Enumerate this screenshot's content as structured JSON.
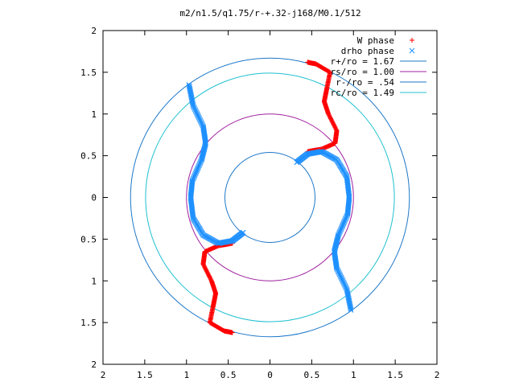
{
  "chart_data": {
    "type": "scatter",
    "title": "m2/n1.5/q1.75/r-+.32-j168/M0.1/512",
    "xlim": [
      -2,
      2
    ],
    "ylim": [
      -2,
      2
    ],
    "x_ticks": [
      -2,
      -1.5,
      -1,
      -0.5,
      0,
      0.5,
      1,
      1.5,
      2
    ],
    "y_ticks": [
      -2,
      -1.5,
      -1,
      -0.5,
      0,
      0.5,
      1,
      1.5,
      2
    ],
    "x_tick_labels": [
      "2",
      "1.5",
      "1",
      "0.5",
      "0",
      "0.5",
      "1",
      "1.5",
      "2"
    ],
    "y_tick_labels": [
      "2",
      "1.5",
      "1",
      "0.5",
      "0",
      "0.5",
      "1",
      "1.5",
      "2"
    ],
    "grid": false,
    "legend_position": "top-right",
    "series": [
      {
        "name": "W phase",
        "marker": "plus",
        "color": "#ff0000",
        "arms": [
          [
            [
              0.45,
              0.55
            ],
            [
              0.62,
              0.58
            ],
            [
              0.78,
              0.65
            ],
            [
              0.8,
              0.8
            ],
            [
              0.7,
              1.0
            ],
            [
              0.65,
              1.15
            ],
            [
              0.68,
              1.3
            ],
            [
              0.72,
              1.5
            ],
            [
              0.55,
              1.6
            ],
            [
              0.45,
              1.62
            ]
          ],
          [
            [
              -0.45,
              -0.55
            ],
            [
              -0.62,
              -0.58
            ],
            [
              -0.78,
              -0.65
            ],
            [
              -0.8,
              -0.8
            ],
            [
              -0.7,
              -1.0
            ],
            [
              -0.65,
              -1.15
            ],
            [
              -0.68,
              -1.3
            ],
            [
              -0.72,
              -1.5
            ],
            [
              -0.55,
              -1.6
            ],
            [
              -0.45,
              -1.62
            ]
          ]
        ]
      },
      {
        "name": "drho phase",
        "marker": "cross",
        "color": "#1e90ff",
        "arms": [
          [
            [
              0.32,
              0.42
            ],
            [
              0.45,
              0.52
            ],
            [
              0.62,
              0.55
            ],
            [
              0.8,
              0.45
            ],
            [
              0.92,
              0.25
            ],
            [
              0.95,
              0.0
            ],
            [
              0.93,
              -0.2
            ],
            [
              0.82,
              -0.45
            ],
            [
              0.77,
              -0.65
            ],
            [
              0.8,
              -0.85
            ],
            [
              0.92,
              -1.1
            ],
            [
              0.97,
              -1.35
            ]
          ],
          [
            [
              -0.32,
              -0.42
            ],
            [
              -0.45,
              -0.52
            ],
            [
              -0.62,
              -0.55
            ],
            [
              -0.8,
              -0.45
            ],
            [
              -0.92,
              -0.25
            ],
            [
              -0.95,
              0.0
            ],
            [
              -0.93,
              0.2
            ],
            [
              -0.82,
              0.45
            ],
            [
              -0.77,
              0.65
            ],
            [
              -0.8,
              0.85
            ],
            [
              -0.92,
              1.1
            ],
            [
              -0.97,
              1.35
            ]
          ]
        ]
      },
      {
        "name": "r+/ro = 1.67",
        "type": "circle",
        "radius": 1.67,
        "color": "#1e78c8"
      },
      {
        "name": "rs/ro = 1.00",
        "type": "circle",
        "radius": 1.0,
        "color": "#a020a0"
      },
      {
        "name": "r-/ro = .54",
        "type": "circle",
        "radius": 0.54,
        "color": "#1e78c8"
      },
      {
        "name": "rc/ro = 1.49",
        "type": "circle",
        "radius": 1.49,
        "color": "#20c0d0"
      }
    ]
  }
}
